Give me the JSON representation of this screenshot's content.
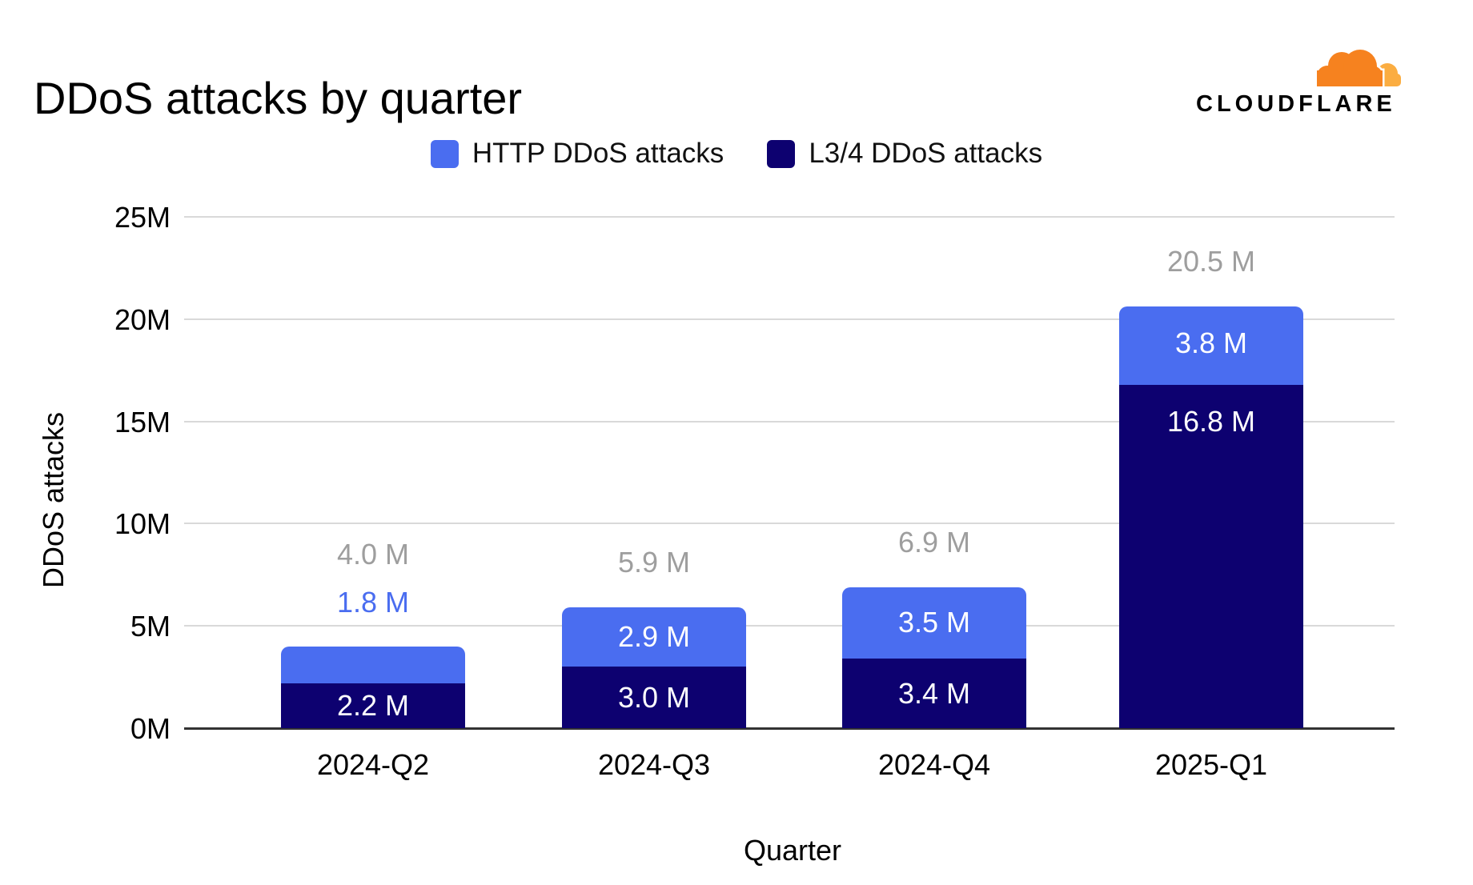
{
  "header": {
    "title": "DDoS attacks by quarter",
    "brand_name": "CLOUDFLARE"
  },
  "legend": [
    {
      "label": "HTTP DDoS attacks",
      "color": "#4a6df0"
    },
    {
      "label": "L3/4 DDoS attacks",
      "color": "#0d0170"
    }
  ],
  "colors": {
    "http_series": "#4a6df0",
    "l34_series": "#0d0170",
    "total_label_gray": "#9e9e9e",
    "gridline": "#d9d9d9",
    "axis_line": "#333333",
    "logo_orange_dark": "#f6821f",
    "logo_orange_light": "#fbad41"
  },
  "chart_data": {
    "type": "bar",
    "stacked": true,
    "title": "DDoS attacks by quarter",
    "xlabel": "Quarter",
    "ylabel": "DDoS attacks",
    "categories": [
      "2024-Q2",
      "2024-Q3",
      "2024-Q4",
      "2025-Q1"
    ],
    "series": [
      {
        "name": "HTTP DDoS attacks",
        "color": "#4a6df0",
        "values": [
          1.8,
          2.9,
          3.5,
          3.8
        ],
        "labels": [
          "1.8 M",
          "2.9 M",
          "3.5 M",
          "3.8 M"
        ]
      },
      {
        "name": "L3/4 DDoS attacks",
        "color": "#0d0170",
        "values": [
          2.2,
          3.0,
          3.4,
          16.8
        ],
        "labels": [
          "2.2 M",
          "3.0 M",
          "3.4 M",
          "16.8 M"
        ]
      }
    ],
    "totals": {
      "values": [
        4.0,
        5.9,
        6.9,
        20.5
      ],
      "labels": [
        "4.0 M",
        "5.9 M",
        "6.9 M",
        "20.5 M"
      ]
    },
    "unit": "M",
    "ylim": [
      0,
      25
    ],
    "y_ticks": [
      {
        "value": 25,
        "label": "25M"
      },
      {
        "value": 20,
        "label": "20M"
      },
      {
        "value": 15,
        "label": "15M"
      },
      {
        "value": 10,
        "label": "10M"
      },
      {
        "value": 5,
        "label": "5M"
      },
      {
        "value": 0,
        "label": "0M"
      }
    ],
    "grid": true,
    "legend_position": "top"
  }
}
